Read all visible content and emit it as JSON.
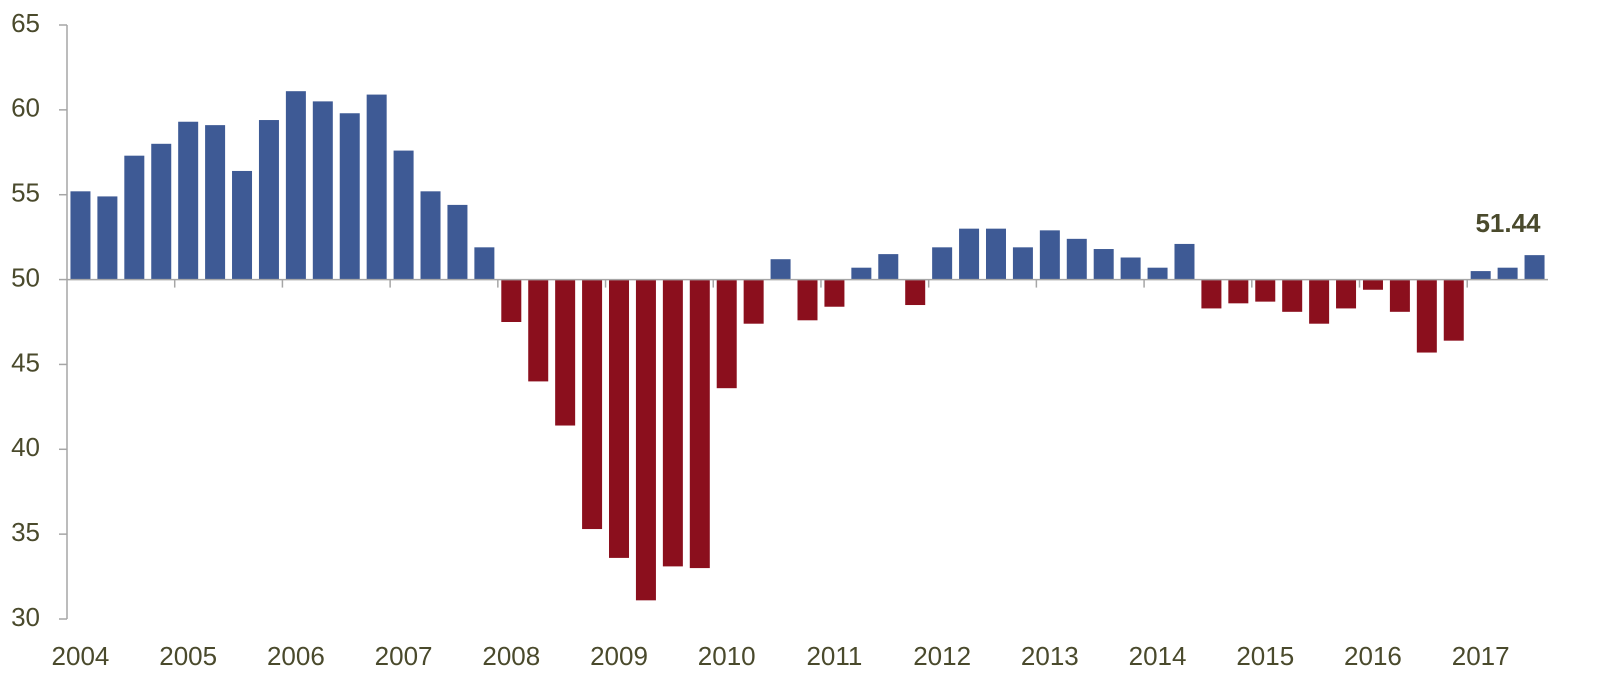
{
  "chart_data": {
    "type": "bar",
    "categories": [
      "2004",
      null,
      null,
      null,
      "2005",
      null,
      null,
      null,
      "2006",
      null,
      null,
      null,
      "2007",
      null,
      null,
      null,
      "2008",
      null,
      null,
      null,
      "2009",
      null,
      null,
      null,
      "2010",
      null,
      null,
      null,
      "2011",
      null,
      null,
      null,
      "2012",
      null,
      null,
      null,
      "2013",
      null,
      null,
      null,
      "2014",
      null,
      null,
      null,
      "2015",
      null,
      null,
      null,
      "2016",
      null,
      null,
      null,
      "2017",
      null,
      null
    ],
    "values": [
      55.2,
      54.9,
      57.3,
      58.0,
      59.3,
      59.1,
      56.4,
      59.4,
      61.1,
      60.5,
      59.8,
      60.9,
      57.6,
      55.2,
      54.4,
      51.9,
      47.5,
      44.0,
      41.4,
      35.3,
      33.6,
      31.1,
      33.1,
      33.0,
      43.6,
      47.4,
      51.2,
      47.6,
      48.4,
      50.7,
      51.5,
      48.5,
      51.9,
      53.0,
      53.0,
      51.9,
      52.9,
      52.4,
      51.8,
      51.3,
      50.7,
      52.1,
      48.3,
      48.6,
      48.7,
      48.1,
      47.4,
      48.3,
      49.4,
      48.1,
      45.7,
      46.4,
      50.5,
      50.7,
      51.44
    ],
    "color": "#3e5a95",
    "negative_color": "#8b0f1d",
    "baseline": 50,
    "show_value_label": "last",
    "ylim": [
      30,
      65
    ],
    "yticks": [
      30,
      35,
      40,
      45,
      50,
      55,
      60,
      65
    ],
    "grid": false
  }
}
